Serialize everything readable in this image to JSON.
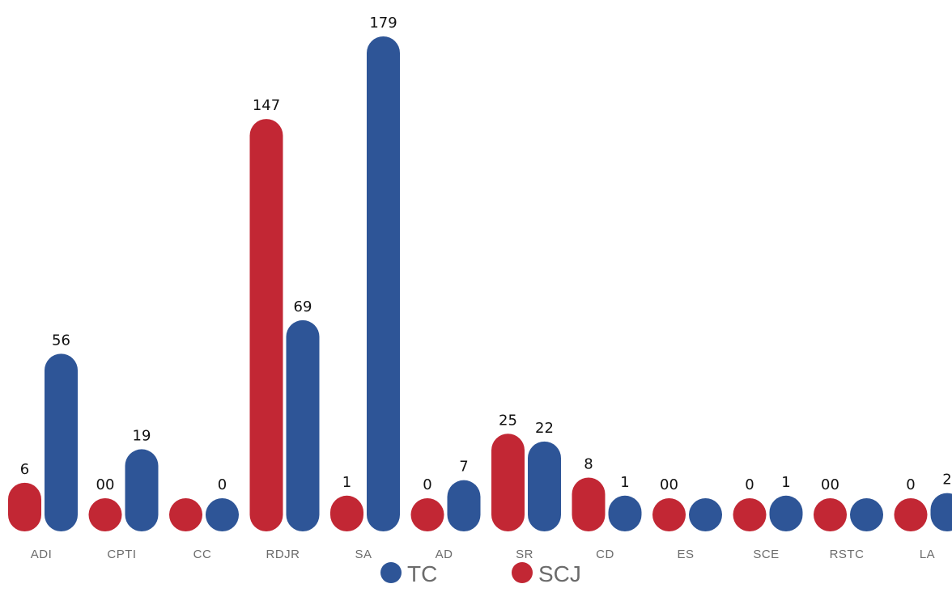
{
  "chart_data": {
    "type": "bar",
    "categories": [
      "ADI",
      "CPTI",
      "CC",
      "RDJR",
      "SA",
      "AD",
      "SR",
      "CD",
      "ES",
      "SCE",
      "RSTC",
      "LA"
    ],
    "series": [
      {
        "name": "SCJ",
        "color": "#c22734",
        "values": [
          6,
          0,
          0,
          147,
          1,
          0,
          25,
          8,
          0,
          0,
          0,
          0
        ],
        "labels": [
          "6",
          "00",
          "",
          "147",
          "1",
          "0",
          "25",
          "8",
          "00",
          "0",
          "00",
          "0"
        ]
      },
      {
        "name": "TC",
        "color": "#2e5597",
        "values": [
          56,
          19,
          0,
          69,
          179,
          7,
          22,
          1,
          0,
          1,
          0,
          2
        ],
        "labels": [
          "56",
          "19",
          "0",
          "69",
          "179",
          "7",
          "22",
          "1",
          "",
          "1",
          "",
          "2"
        ]
      }
    ],
    "legend": {
      "placement": "bottom-center",
      "order": [
        "TC",
        "SCJ"
      ]
    },
    "grid": false,
    "ylim": [
      0,
      179
    ]
  }
}
